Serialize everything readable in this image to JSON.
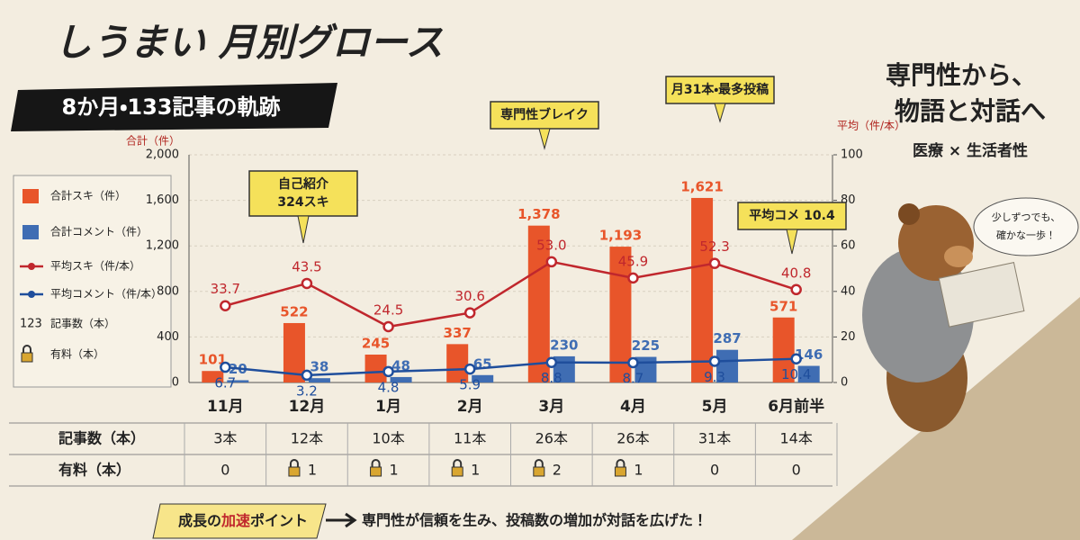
{
  "chart_data": {
    "type": "bar",
    "title": "しうまい 月別グロース",
    "subtitle": "8か月・133記事の軌跡",
    "ylabel": "合計（件）",
    "y2label": "平均（件/本）",
    "categories": [
      "11月",
      "12月",
      "1月",
      "2月",
      "3月",
      "4月",
      "5月",
      "6月前半"
    ],
    "ylim": [
      0,
      2000
    ],
    "yticks": [
      0,
      400,
      800,
      {
        "value": 1200,
        "label": "1,200"
      },
      {
        "value": 1600,
        "label": "1,600"
      },
      {
        "value": 2000,
        "label": "2,000"
      }
    ],
    "y2lim": [
      0,
      100
    ],
    "y2ticks": [
      0,
      20,
      40,
      60,
      80,
      100
    ],
    "grid": true,
    "series": [
      {
        "name": "合計スキ（件）",
        "type": "bar",
        "color": "#e8552a",
        "values": [
          101,
          522,
          245,
          337,
          1378,
          1193,
          1621,
          571
        ],
        "value_labels": [
          "101",
          "522",
          "245",
          "337",
          "1,378",
          "1,193",
          "1,621",
          "571"
        ]
      },
      {
        "name": "合計コメント（件）",
        "type": "bar",
        "color": "#3f6db3",
        "values": [
          20,
          38,
          48,
          65,
          230,
          225,
          287,
          146
        ]
      },
      {
        "name": "平均スキ（件/本）",
        "type": "line",
        "axis": "y2",
        "color": "#c0272d",
        "values": [
          33.7,
          43.5,
          24.5,
          30.6,
          53.0,
          45.9,
          52.3,
          40.8
        ],
        "value_labels": [
          "33.7",
          "43.5",
          "24.5",
          "30.6",
          "53.0",
          "45.9",
          "52.3",
          "40.8"
        ]
      },
      {
        "name": "平均コメント（件/本）",
        "type": "line",
        "axis": "y2",
        "color": "#1f4e9c",
        "values": [
          6.7,
          3.2,
          4.8,
          5.9,
          8.8,
          8.7,
          9.3,
          10.4
        ]
      }
    ]
  },
  "legend_extra": [
    {
      "symbol": "123",
      "label": "記事数（本）"
    },
    {
      "label": "有料（本）"
    }
  ],
  "annotations": [
    {
      "lines": [
        "自己紹介",
        "324スキ"
      ]
    },
    {
      "lines": [
        "専門性ブレイク"
      ]
    },
    {
      "lines": [
        "月31本・最多投稿"
      ]
    },
    {
      "lines": [
        "平均コメ 10.4"
      ]
    }
  ],
  "table": {
    "rows": [
      {
        "header": "記事数（本）",
        "cells": [
          "3本",
          "12本",
          "10本",
          "11本",
          "26本",
          "26本",
          "31本",
          "14本"
        ]
      },
      {
        "header": "有料（本）",
        "cells": [
          "0",
          "1",
          "1",
          "1",
          "2",
          "1",
          "0",
          "0"
        ]
      }
    ]
  },
  "side": {
    "headline": [
      "専門性から、",
      "物語と対話へ"
    ],
    "tagline": "医療 × 生活者性",
    "speech": [
      "少しずつでも、",
      "確かな一歩！"
    ]
  },
  "footer": {
    "label_parts": [
      "成長の",
      "加速",
      "ポイント"
    ],
    "message": "専門性が信頼を生み、投稿数の増加が対話を広げた！"
  }
}
